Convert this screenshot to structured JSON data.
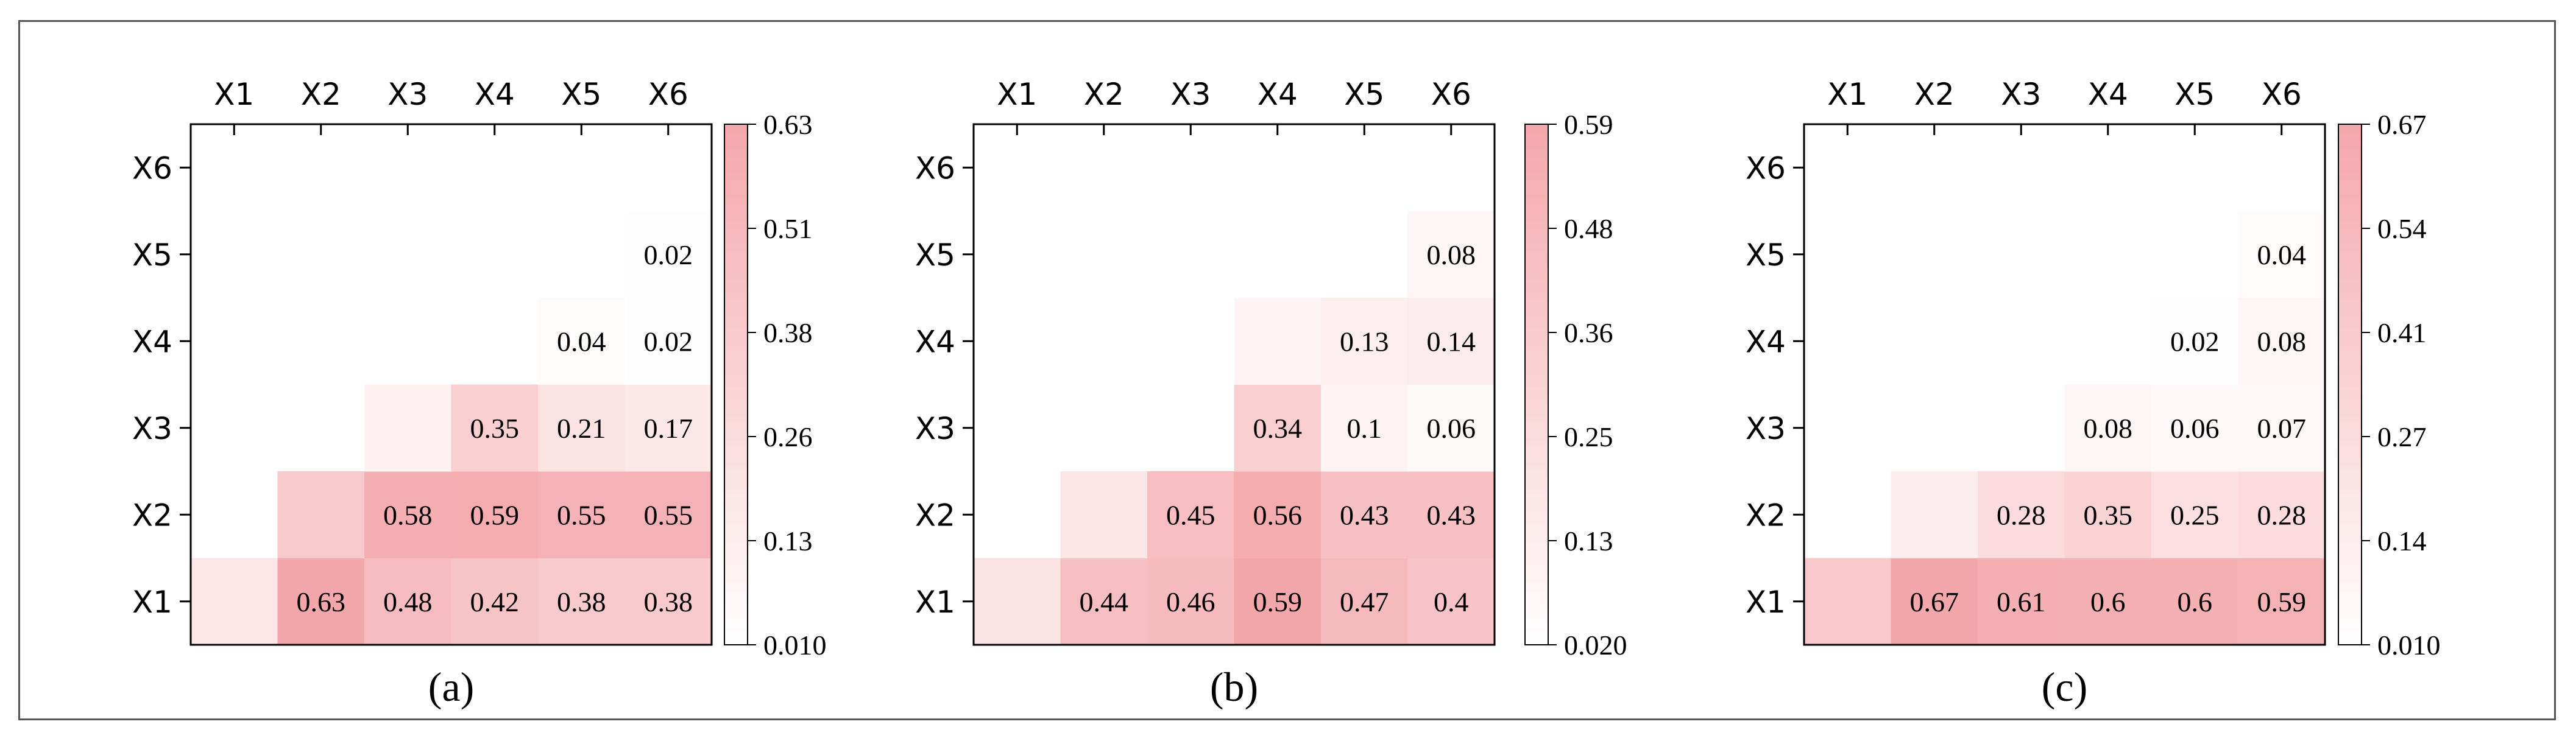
{
  "chart_data": [
    {
      "type": "heatmap",
      "panel_label": "(a)",
      "x_categories": [
        "X1",
        "X2",
        "X3",
        "X4",
        "X5",
        "X6"
      ],
      "y_categories": [
        "X6",
        "X5",
        "X4",
        "X3",
        "X2",
        "X1"
      ],
      "colorbar_ticks": [
        "0.63",
        "0.51",
        "0.38",
        "0.26",
        "0.13",
        "0.010"
      ],
      "colorbar_range": [
        0.01,
        0.63
      ],
      "cells": [
        {
          "row": "X1",
          "col": "X1",
          "value": null,
          "fill": 0.28
        },
        {
          "row": "X1",
          "col": "X2",
          "value": 0.63
        },
        {
          "row": "X1",
          "col": "X3",
          "value": 0.48
        },
        {
          "row": "X1",
          "col": "X4",
          "value": 0.42
        },
        {
          "row": "X1",
          "col": "X5",
          "value": 0.38
        },
        {
          "row": "X1",
          "col": "X6",
          "value": 0.38
        },
        {
          "row": "X2",
          "col": "X2",
          "value": null,
          "fill": 0.6
        },
        {
          "row": "X2",
          "col": "X3",
          "value": 0.58
        },
        {
          "row": "X2",
          "col": "X4",
          "value": 0.59
        },
        {
          "row": "X2",
          "col": "X5",
          "value": 0.55
        },
        {
          "row": "X2",
          "col": "X6",
          "value": 0.55
        },
        {
          "row": "X3",
          "col": "X3",
          "value": null,
          "fill": 0.16
        },
        {
          "row": "X3",
          "col": "X4",
          "value": 0.35
        },
        {
          "row": "X3",
          "col": "X5",
          "value": 0.21
        },
        {
          "row": "X3",
          "col": "X6",
          "value": 0.17
        },
        {
          "row": "X4",
          "col": "X5",
          "value": 0.04
        },
        {
          "row": "X4",
          "col": "X6",
          "value": 0.02
        },
        {
          "row": "X5",
          "col": "X6",
          "value": 0.02
        }
      ]
    },
    {
      "type": "heatmap",
      "panel_label": "(b)",
      "x_categories": [
        "X1",
        "X2",
        "X3",
        "X4",
        "X5",
        "X6"
      ],
      "y_categories": [
        "X6",
        "X5",
        "X4",
        "X3",
        "X2",
        "X1"
      ],
      "colorbar_ticks": [
        "0.59",
        "0.48",
        "0.36",
        "0.25",
        "0.13",
        "0.020"
      ],
      "colorbar_range": [
        0.02,
        0.59
      ],
      "cells": [
        {
          "row": "X1",
          "col": "X1",
          "value": null,
          "fill": 0.32
        },
        {
          "row": "X1",
          "col": "X2",
          "value": 0.44
        },
        {
          "row": "X1",
          "col": "X3",
          "value": 0.46
        },
        {
          "row": "X1",
          "col": "X4",
          "value": 0.59
        },
        {
          "row": "X1",
          "col": "X5",
          "value": 0.47
        },
        {
          "row": "X1",
          "col": "X6",
          "value": 0.4
        },
        {
          "row": "X2",
          "col": "X2",
          "value": null,
          "fill": 0.3
        },
        {
          "row": "X2",
          "col": "X3",
          "value": 0.45
        },
        {
          "row": "X2",
          "col": "X4",
          "value": 0.56
        },
        {
          "row": "X2",
          "col": "X5",
          "value": 0.43
        },
        {
          "row": "X2",
          "col": "X6",
          "value": 0.43
        },
        {
          "row": "X3",
          "col": "X4",
          "value": 0.34
        },
        {
          "row": "X3",
          "col": "X5",
          "value": 0.1
        },
        {
          "row": "X3",
          "col": "X6",
          "value": 0.06
        },
        {
          "row": "X4",
          "col": "X4",
          "value": null,
          "fill": 0.12
        },
        {
          "row": "X4",
          "col": "X5",
          "value": 0.13
        },
        {
          "row": "X4",
          "col": "X6",
          "value": 0.14
        },
        {
          "row": "X5",
          "col": "X6",
          "value": 0.08
        }
      ]
    },
    {
      "type": "heatmap",
      "panel_label": "(c)",
      "x_categories": [
        "X1",
        "X2",
        "X3",
        "X4",
        "X5",
        "X6"
      ],
      "y_categories": [
        "X6",
        "X5",
        "X4",
        "X3",
        "X2",
        "X1"
      ],
      "colorbar_ticks": [
        "0.67",
        "0.54",
        "0.41",
        "0.27",
        "0.14",
        "0.010"
      ],
      "colorbar_range": [
        0.01,
        0.67
      ],
      "cells": [
        {
          "row": "X1",
          "col": "X1",
          "value": null,
          "fill": 0.62
        },
        {
          "row": "X1",
          "col": "X2",
          "value": 0.67
        },
        {
          "row": "X1",
          "col": "X3",
          "value": 0.61
        },
        {
          "row": "X1",
          "col": "X4",
          "value": 0.6
        },
        {
          "row": "X1",
          "col": "X5",
          "value": 0.6
        },
        {
          "row": "X1",
          "col": "X6",
          "value": 0.59
        },
        {
          "row": "X2",
          "col": "X2",
          "value": null,
          "fill": 0.2
        },
        {
          "row": "X2",
          "col": "X3",
          "value": 0.28
        },
        {
          "row": "X2",
          "col": "X4",
          "value": 0.35
        },
        {
          "row": "X2",
          "col": "X5",
          "value": 0.25
        },
        {
          "row": "X2",
          "col": "X6",
          "value": 0.28
        },
        {
          "row": "X3",
          "col": "X4",
          "value": 0.08
        },
        {
          "row": "X3",
          "col": "X5",
          "value": 0.06
        },
        {
          "row": "X3",
          "col": "X6",
          "value": 0.07
        },
        {
          "row": "X4",
          "col": "X5",
          "value": 0.02
        },
        {
          "row": "X4",
          "col": "X6",
          "value": 0.08
        },
        {
          "row": "X5",
          "col": "X6",
          "value": 0.04
        }
      ]
    }
  ],
  "colors": {
    "high": "#f4a7ab",
    "low": "#ffffff",
    "frame": "#555555",
    "axis": "#000000"
  }
}
